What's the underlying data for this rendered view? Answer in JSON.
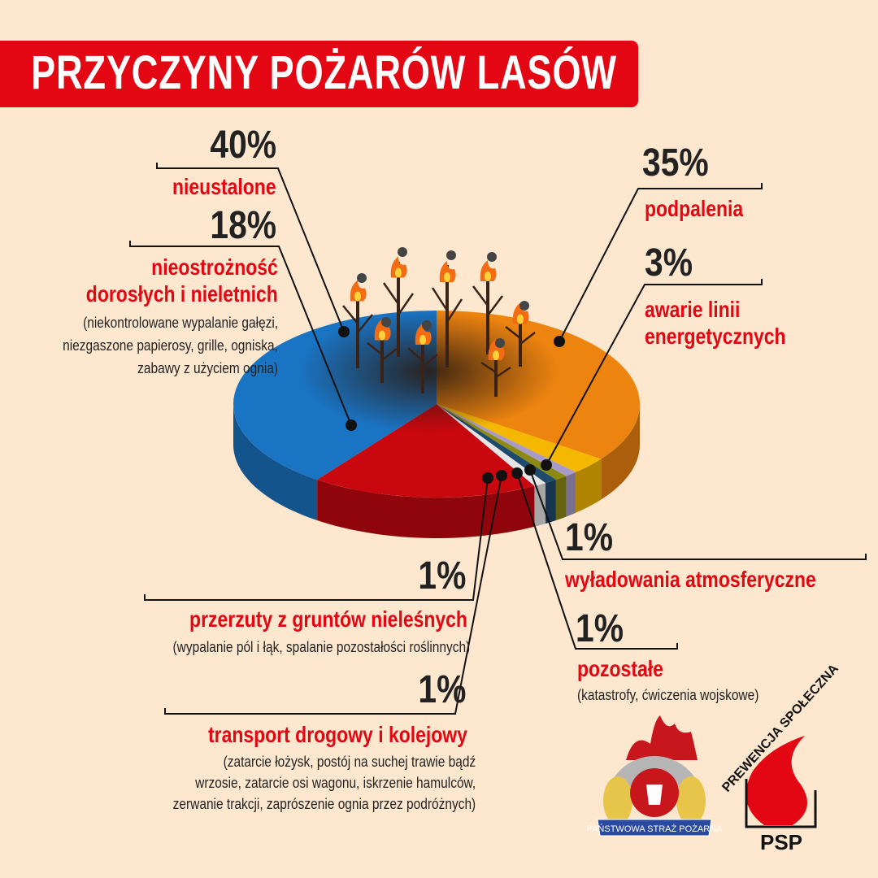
{
  "title": "PRZYCZYNY POŻARÓW LASÓW",
  "chart_data": {
    "type": "pie",
    "title": "PRZYCZYNY POŻARÓW LASÓW",
    "categories": [
      "podpalenia",
      "awarie linii energetycznych",
      "wyładowania atmosferyczne",
      "pozostałe",
      "transport drogowy i kolejowy",
      "przerzuty z gruntów nieleśnych",
      "nieostrożność dorosłych i nieletnich",
      "nieustalone"
    ],
    "values": [
      35,
      3,
      1,
      1,
      1,
      1,
      18,
      40
    ],
    "colors": [
      "#ee8410",
      "#f5b800",
      "#a99bc9",
      "#8c8a12",
      "#1e4a6e",
      "#e6e6e6",
      "#c8070f",
      "#1a74c4"
    ],
    "value_labels": [
      "35%",
      "3%",
      "1%",
      "1%",
      "1%",
      "1%",
      "18%",
      "40%"
    ]
  },
  "labels": {
    "nieustalone": {
      "pct": "40%",
      "name": "nieustalone"
    },
    "nieostroznosc": {
      "pct": "18%",
      "name1": "nieostrożność",
      "name2": "dorosłych i nieletnich",
      "desc1": "(niekontrolowane wypalanie gałęzi,",
      "desc2": "niezgaszone papierosy, grille, ogniska,",
      "desc3": "zabawy z użyciem ognia)"
    },
    "podpalenia": {
      "pct": "35%",
      "name": "podpalenia"
    },
    "awarie": {
      "pct": "3%",
      "name1": "awarie linii",
      "name2": "energetycznych"
    },
    "wyladowania": {
      "pct": "1%",
      "name": "wyładowania atmosferyczne"
    },
    "pozostale": {
      "pct": "1%",
      "name": "pozostałe",
      "desc": "(katastrofy, ćwiczenia wojskowe)"
    },
    "przerzuty": {
      "pct": "1%",
      "name": "przerzuty z gruntów nieleśnych",
      "desc": "(wypalanie pól i łąk, spalanie pozostałości roślinnych)"
    },
    "transport": {
      "pct": "1%",
      "name": "transport drogowy i kolejowy",
      "desc1": "(zatarcie łożysk, postój na suchej trawie bądź",
      "desc2": "wrzosie, zatarcie osi wagonu, iskrzenie hamulców,",
      "desc3": "zerwanie trakcji, zaprószenie ognia przez podróżnych)"
    }
  },
  "logos": {
    "psp_emblem": "PAŃSTWOWA STRAŻ POŻARNA",
    "prewencja": "PREWENCJA SPOŁECZNA",
    "psp": "PSP"
  }
}
